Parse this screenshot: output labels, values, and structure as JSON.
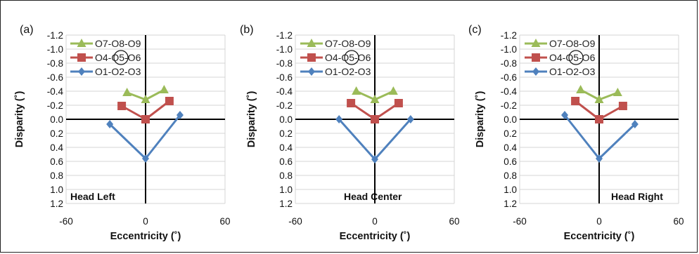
{
  "colors": {
    "green": "#9BBB59",
    "red": "#C0504D",
    "blue": "#4F81BD",
    "grid": "#d4d4d4",
    "axis": "#000000"
  },
  "chart_data": [
    {
      "type": "line",
      "panel_label": "(a)",
      "xlabel": "Eccentricity (˚)",
      "ylabel": "Disparity (˚)",
      "annotation": "Head Left",
      "xlim": [
        -60,
        60
      ],
      "x_ticks": [
        "-60",
        "0",
        "60"
      ],
      "ylim": [
        1.2,
        -1.2
      ],
      "y_ticks": [
        "-1.2",
        "-1.0",
        "-0.8",
        "-0.6",
        "-0.4",
        "-0.2",
        "0.0",
        "0.2",
        "0.4",
        "0.6",
        "0.8",
        "1.0",
        "1.2"
      ],
      "grid": true,
      "legend_position": "top-left",
      "series": [
        {
          "name": "O7-O8-O9",
          "color": "green",
          "marker": "triangle",
          "x": [
            -14,
            0,
            14
          ],
          "y": [
            -0.38,
            -0.28,
            -0.42
          ]
        },
        {
          "name": "O4-O5-O6",
          "color": "red",
          "marker": "square",
          "x": [
            -18,
            0,
            18
          ],
          "y": [
            -0.19,
            0.0,
            -0.26
          ]
        },
        {
          "name": "O1-O2-O3",
          "color": "blue",
          "marker": "diamond",
          "x": [
            -27,
            0,
            26
          ],
          "y": [
            0.07,
            0.56,
            -0.06
          ]
        }
      ]
    },
    {
      "type": "line",
      "panel_label": "(b)",
      "xlabel": "Eccentricity (˚)",
      "ylabel": "Disparity (˚)",
      "annotation": "Head Center",
      "xlim": [
        -60,
        60
      ],
      "x_ticks": [
        "-60",
        "0",
        "60"
      ],
      "ylim": [
        1.2,
        -1.2
      ],
      "y_ticks": [
        "-1.2",
        "-1.0",
        "-0.8",
        "-0.6",
        "-0.4",
        "-0.2",
        "0.0",
        "0.2",
        "0.4",
        "0.6",
        "0.8",
        "1.0",
        "1.2"
      ],
      "grid": true,
      "legend_position": "top-left",
      "series": [
        {
          "name": "O7-O8-O9",
          "color": "green",
          "marker": "triangle",
          "x": [
            -14,
            0,
            14
          ],
          "y": [
            -0.4,
            -0.28,
            -0.4
          ]
        },
        {
          "name": "O4-O5-O6",
          "color": "red",
          "marker": "square",
          "x": [
            -18,
            0,
            18
          ],
          "y": [
            -0.23,
            0.0,
            -0.23
          ]
        },
        {
          "name": "O1-O2-O3",
          "color": "blue",
          "marker": "diamond",
          "x": [
            -27,
            0,
            27
          ],
          "y": [
            0.0,
            0.57,
            0.0
          ]
        }
      ]
    },
    {
      "type": "line",
      "panel_label": "(c)",
      "xlabel": "Eccentricity (˚)",
      "ylabel": "Disparity (˚)",
      "annotation": "Head Right",
      "xlim": [
        -60,
        60
      ],
      "x_ticks": [
        "-60",
        "0",
        "60"
      ],
      "ylim": [
        1.2,
        -1.2
      ],
      "y_ticks": [
        "-1.2",
        "-1.0",
        "-0.8",
        "-0.6",
        "-0.4",
        "-0.2",
        "0.0",
        "0.2",
        "0.4",
        "0.6",
        "0.8",
        "1.0",
        "1.2"
      ],
      "grid": true,
      "legend_position": "top-left",
      "series": [
        {
          "name": "O7-O8-O9",
          "color": "green",
          "marker": "triangle",
          "x": [
            -14,
            0,
            14
          ],
          "y": [
            -0.42,
            -0.28,
            -0.38
          ]
        },
        {
          "name": "O4-O5-O6",
          "color": "red",
          "marker": "square",
          "x": [
            -18,
            0,
            18
          ],
          "y": [
            -0.26,
            0.0,
            -0.19
          ]
        },
        {
          "name": "O1-O2-O3",
          "color": "blue",
          "marker": "diamond",
          "x": [
            -26,
            0,
            27
          ],
          "y": [
            -0.06,
            0.56,
            0.07
          ]
        }
      ]
    }
  ]
}
